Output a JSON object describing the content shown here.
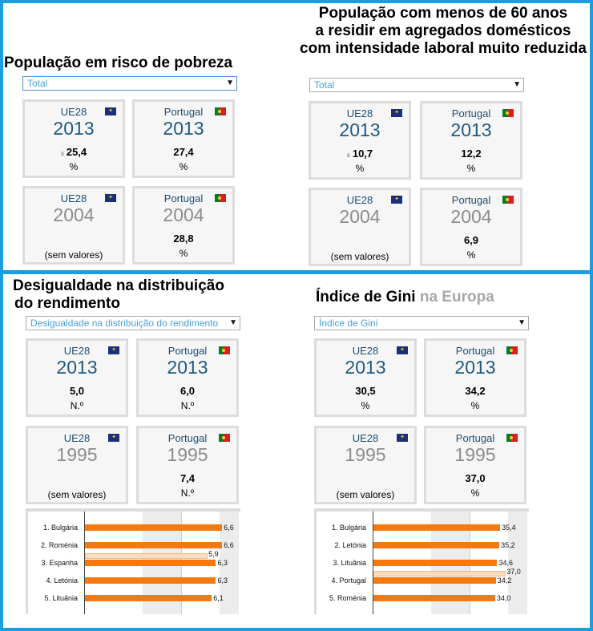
{
  "panels": {
    "poverty": {
      "title": "População em risco de pobreza",
      "select": "Total",
      "cards": {
        "eu_recent": {
          "region": "UE28",
          "year": "2013",
          "flag": "s",
          "value": "25,4",
          "unit": "%"
        },
        "pt_recent": {
          "region": "Portugal",
          "year": "2013",
          "value": "27,4",
          "unit": "%"
        },
        "eu_old": {
          "region": "UE28",
          "year": "2004",
          "noval": "(sem valores)"
        },
        "pt_old": {
          "region": "Portugal",
          "year": "2004",
          "value": "28,8",
          "unit": "%"
        }
      }
    },
    "labour": {
      "title_line1": "População com menos de 60 anos",
      "title_line2": "a residir em agregados domésticos",
      "title_line3": "com intensidade laboral muito reduzida",
      "select": "Total",
      "cards": {
        "eu_recent": {
          "region": "UE28",
          "year": "2013",
          "flag": "s",
          "value": "10,7",
          "unit": "%"
        },
        "pt_recent": {
          "region": "Portugal",
          "year": "2013",
          "value": "12,2",
          "unit": "%"
        },
        "eu_old": {
          "region": "UE28",
          "year": "2004",
          "noval": "(sem valores)"
        },
        "pt_old": {
          "region": "Portugal",
          "year": "2004",
          "value": "6,9",
          "unit": "%"
        }
      }
    },
    "inequality": {
      "title_line1": "Desigualdade na distribuição",
      "title_line2": "do rendimento",
      "select": "Desigualdade na distribuição do rendimento",
      "cards": {
        "eu_recent": {
          "region": "UE28",
          "year": "2013",
          "value": "5,0",
          "unit": "N.º"
        },
        "pt_recent": {
          "region": "Portugal",
          "year": "2013",
          "value": "6,0",
          "unit": "N.º"
        },
        "eu_old": {
          "region": "UE28",
          "year": "1995",
          "noval": "(sem valores)"
        },
        "pt_old": {
          "region": "Portugal",
          "year": "1995",
          "value": "7,4",
          "unit": "N.º"
        }
      },
      "ranking": [
        {
          "label": "1. Bulgária",
          "value": 6.6,
          "text": "6,6"
        },
        {
          "label": "2. Roménia",
          "value": 6.6,
          "text": "6,6"
        },
        {
          "label": "3. Espanha",
          "value": 6.3,
          "text": "6,3",
          "pale": 5.9,
          "pale_text": "5,9"
        },
        {
          "label": "4. Letónia",
          "value": 6.3,
          "text": "6,3"
        },
        {
          "label": "5. Lituânia",
          "value": 6.1,
          "text": "6,1"
        }
      ]
    },
    "gini": {
      "title_main": "Índice de Gini",
      "title_muted": "na Europa",
      "select": "Índice de Gini",
      "cards": {
        "eu_recent": {
          "region": "UE28",
          "year": "2013",
          "value": "30,5",
          "unit": "%"
        },
        "pt_recent": {
          "region": "Portugal",
          "year": "2013",
          "value": "34,2",
          "unit": "%"
        },
        "eu_old": {
          "region": "UE28",
          "year": "1995",
          "noval": "(sem valores)"
        },
        "pt_old": {
          "region": "Portugal",
          "year": "1995",
          "value": "37,0",
          "unit": "%"
        }
      },
      "ranking": [
        {
          "label": "1. Bulgária",
          "value": 35.4,
          "text": "35,4"
        },
        {
          "label": "2. Letónia",
          "value": 35.2,
          "text": "35,2"
        },
        {
          "label": "3. Lituânia",
          "value": 34.6,
          "text": "34,6"
        },
        {
          "label": "4. Portugal",
          "value": 34.2,
          "text": "34,2",
          "pale": 37.0,
          "pale_text": "37,0"
        },
        {
          "label": "5. Roménia",
          "value": 34.0,
          "text": "34,0"
        }
      ]
    }
  },
  "chart_data": [
    {
      "type": "bar",
      "title": "Desigualdade na distribuição do rendimento",
      "categories": [
        "1. Bulgária",
        "2. Roménia",
        "3. Espanha",
        "4. Letónia",
        "5. Lituânia"
      ],
      "series": [
        {
          "name": "2013",
          "values": [
            6.6,
            6.6,
            6.3,
            6.3,
            6.1
          ]
        },
        {
          "name": "1995",
          "values": [
            null,
            null,
            5.9,
            null,
            null
          ]
        }
      ],
      "xlim": [
        0,
        8
      ]
    },
    {
      "type": "bar",
      "title": "Índice de Gini",
      "categories": [
        "1. Bulgária",
        "2. Letónia",
        "3. Lituânia",
        "4. Portugal",
        "5. Roménia"
      ],
      "series": [
        {
          "name": "2013",
          "values": [
            35.4,
            35.2,
            34.6,
            34.2,
            34.0
          ]
        },
        {
          "name": "1995",
          "values": [
            null,
            null,
            null,
            37.0,
            null
          ]
        }
      ],
      "xlim": [
        0,
        45
      ]
    }
  ],
  "colors": {
    "accent": "#1a9ee2",
    "bar": "#f47a10",
    "bar_pale": "#fcdcc0",
    "year": "#1f5a80"
  }
}
